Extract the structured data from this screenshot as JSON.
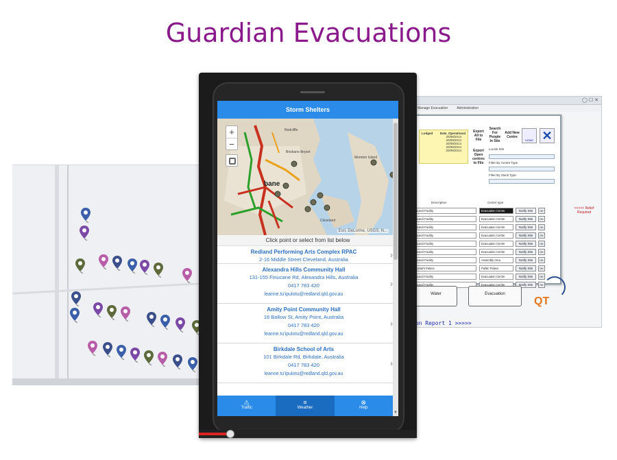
{
  "slide": {
    "title": "Guardian Evacuations"
  },
  "colors": {
    "title": "#8a1a8c",
    "app_header": "#2a8ce8",
    "link_text": "#2a6fc0",
    "relief": "#c0151b"
  },
  "phone_app": {
    "header_title": "Storm Shelters",
    "map": {
      "zoom_in": "+",
      "zoom_out": "−",
      "attribution": "Esri, DeLorme, USGS, N...",
      "city_label": "bane",
      "places": [
        "Redcliffe",
        "Brisbane Airport",
        "Moreton Island",
        "Cleveland"
      ]
    },
    "list_caption": "Click point or select from list below",
    "shelters": [
      {
        "name": "Redland Performing Arts Complex RPAC",
        "address": "2-16 Middle Street Cleveland, Australia",
        "phone": "",
        "email": ""
      },
      {
        "name": "Alexandra Hills Community Hall",
        "address": "131-155 Finucane Rd, Alexandra Hills, Australia",
        "phone": "0417 783 420",
        "email": "leanne.tu'ipulotu@redland.qld.gov.au"
      },
      {
        "name": "Amity Point Community Hall",
        "address": "16 Ballow St, Amity Point, Australia",
        "phone": "0417 783 420",
        "email": "leanne.tu'ipulotu@redland.qld.gov.au"
      },
      {
        "name": "Birkdale School of Arts",
        "address": "101 Birkdale Rd, Birkdale, Australia",
        "phone": "0417 783 420",
        "email": "leanne.tu'ipulotu@redland.qld.gov.au"
      }
    ],
    "tabs": [
      {
        "label": "Traffic",
        "icon": "warning-icon"
      },
      {
        "label": "Weather",
        "icon": "list-icon"
      },
      {
        "label": "Help",
        "icon": "help-icon"
      }
    ]
  },
  "desktop_app": {
    "menu": [
      "Manage Evacuation",
      "Administration"
    ],
    "dates_header": [
      "Lodged",
      "Date_Operational"
    ],
    "dates": [
      "20/08/2014",
      "20/08/2014",
      "20/08/2014",
      "20/08/2014",
      "20/08/2014"
    ],
    "buttons": {
      "export_all": "Export All to File",
      "search_people": "Search For People In Site",
      "add_centre": "Add New Centre",
      "home": "HOME",
      "export_open": "Export Open centres to File"
    },
    "filters": [
      "Locale Site",
      "Filter By Centre Type",
      "Filter By Stack Type"
    ],
    "columns": [
      "Description",
      "Centre type"
    ],
    "rows": [
      {
        "desc": "Council Facility",
        "type": "Evacuation Centre"
      },
      {
        "desc": "Council Facility",
        "type": "Evacuation Centre"
      },
      {
        "desc": "Council Facility",
        "type": "Evacuation Centre"
      },
      {
        "desc": "Council Facility",
        "type": "Evacuation Centre"
      },
      {
        "desc": "Council Facility",
        "type": "Evacuation Centre"
      },
      {
        "desc": "Council Facility",
        "type": "Evacuation Centre"
      },
      {
        "desc": "Council Facility",
        "type": "Assembly Area"
      },
      {
        "desc": "Crystal's Palace",
        "type": "Public Palace"
      },
      {
        "desc": "Council Facility",
        "type": "Evacuation Centre"
      },
      {
        "desc": "Council Facility",
        "type": "Evacuation Centre"
      }
    ],
    "notify_label": "Notify Site",
    "ok_label": "OK",
    "relief_note": "<<<<< Relief Required",
    "gauges": [
      "Water",
      "Evacuation"
    ],
    "logo": "QT",
    "report_line": "ion Report 1 >>>>>"
  }
}
